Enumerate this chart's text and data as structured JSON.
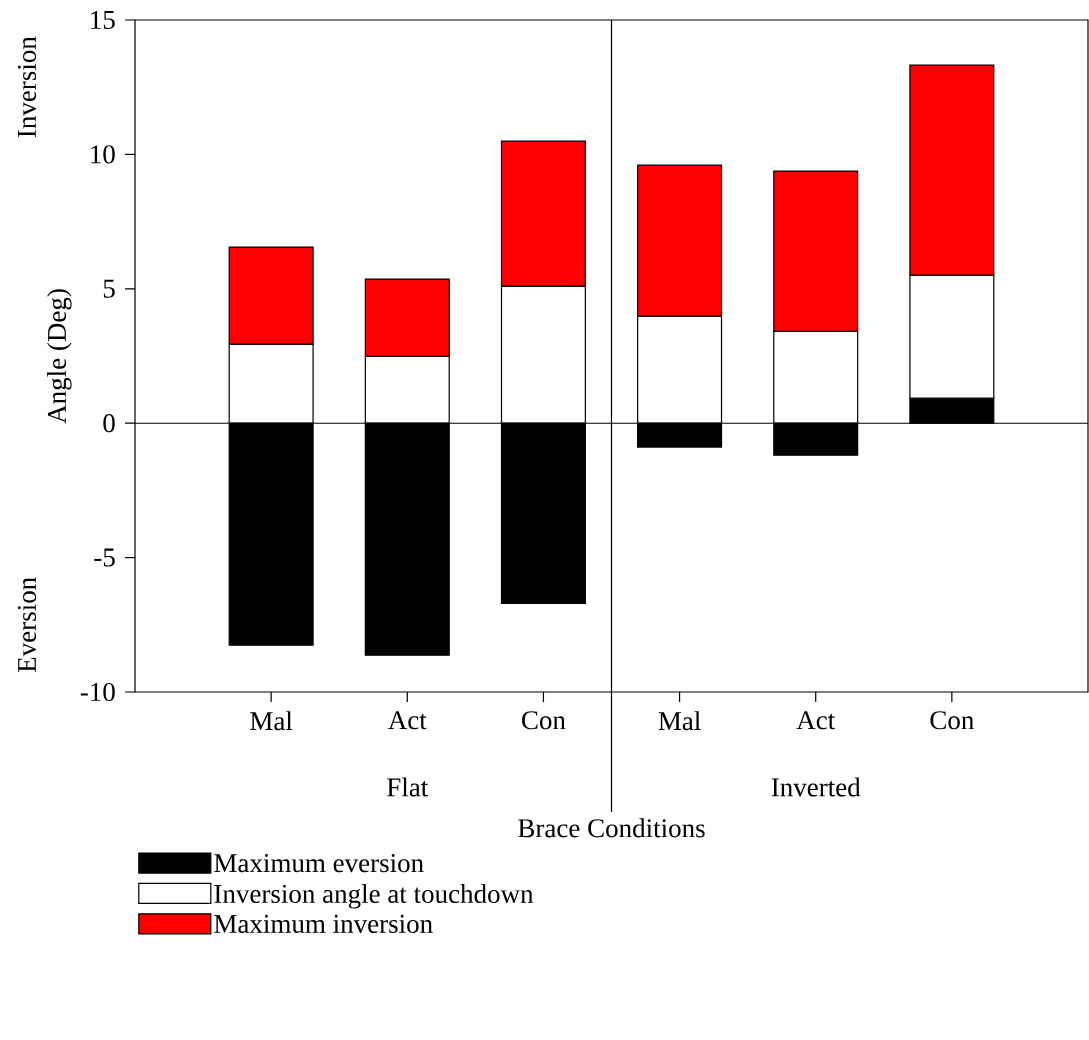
{
  "chart_data": {
    "type": "bar",
    "xlabel": "Brace Conditions",
    "ylabel": "Angle (Deg)",
    "categories": [
      "Mal",
      "Act",
      "Con",
      "Mal",
      "Act",
      "Con"
    ],
    "series": [
      {
        "name": "Maximum eversion",
        "color": "#000000",
        "base": [
          0,
          0,
          0,
          0,
          0,
          0
        ],
        "values": [
          -8.26,
          -8.63,
          -6.7,
          -0.89,
          -1.19,
          0.93
        ]
      },
      {
        "name": "Inversion angle at touchdown",
        "color": "#ffffff",
        "base": [
          0,
          0,
          0,
          0,
          0,
          0.93
        ],
        "values": [
          2.94,
          2.49,
          5.1,
          3.98,
          3.42,
          4.58
        ]
      },
      {
        "name": "Maximum inversion",
        "color": "#ff0000",
        "base": [
          2.94,
          2.49,
          5.1,
          3.98,
          3.42,
          5.51
        ],
        "values": [
          3.61,
          2.87,
          5.39,
          5.62,
          5.96,
          7.81
        ]
      }
    ],
    "ylim": [
      -10,
      15
    ],
    "yticks": [
      -10,
      -5,
      0,
      5,
      10,
      15
    ],
    "ref_lines": [
      {
        "axis": "y",
        "value": 0
      }
    ],
    "annotations": [
      "Flat",
      "Inverted",
      "Inversion",
      "Eversion"
    ],
    "legend": "bottom"
  }
}
